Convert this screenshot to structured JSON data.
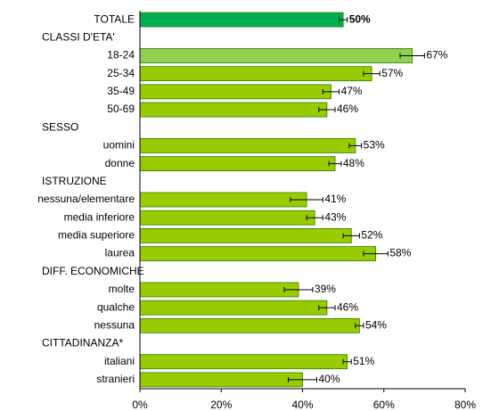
{
  "chart_data": {
    "type": "hbar",
    "categories": [
      "TOTALE",
      "CLASSI D'ETA'",
      "18-24",
      "25-34",
      "35-49",
      "50-69",
      "SESSO",
      "uomini",
      "donne",
      "ISTRUZIONE",
      "nessuna/elementare",
      "media inferiore",
      "media superiore",
      "laurea",
      "DIFF. ECONOMICHE",
      "molte",
      "qualche",
      "nessuna",
      "CITTADINANZA*",
      "italiani",
      "stranieri"
    ],
    "values": [
      50,
      null,
      67,
      57,
      47,
      46,
      null,
      53,
      48,
      null,
      41,
      43,
      52,
      58,
      null,
      39,
      46,
      54,
      null,
      51,
      40
    ],
    "value_labels": [
      "50%",
      null,
      "67%",
      "57%",
      "47%",
      "46%",
      null,
      "53%",
      "48%",
      null,
      "41%",
      "43%",
      "52%",
      "58%",
      null,
      "39%",
      "46%",
      "54%",
      null,
      "51%",
      "40%"
    ],
    "errors": [
      1,
      null,
      3,
      2,
      2,
      2,
      null,
      1.5,
      1.5,
      null,
      4,
      2,
      2,
      3,
      null,
      3.5,
      2,
      1,
      null,
      1,
      3.5
    ],
    "colors": [
      "#00b050",
      null,
      "#92d050",
      "#99cc00",
      "#99cc00",
      "#99cc00",
      null,
      "#99cc00",
      "#99cc00",
      null,
      "#99cc00",
      "#99cc00",
      "#99cc00",
      "#99cc00",
      null,
      "#99cc00",
      "#99cc00",
      "#99cc00",
      null,
      "#99cc00",
      "#99cc00"
    ],
    "xlim": [
      0,
      80
    ],
    "xticks": [
      {
        "value": 0,
        "label": "0%"
      },
      {
        "value": 20,
        "label": "20%"
      },
      {
        "value": 40,
        "label": "40%"
      },
      {
        "value": 60,
        "label": "60%"
      },
      {
        "value": 80,
        "label": "80%"
      }
    ]
  }
}
